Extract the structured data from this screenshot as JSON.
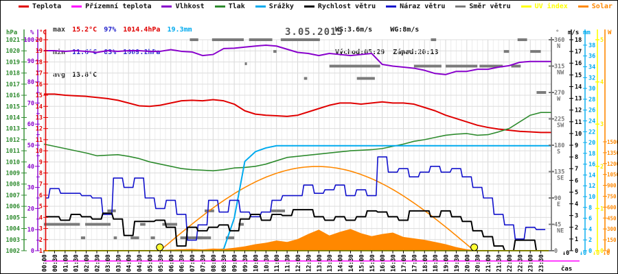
{
  "date": "3.05.2013",
  "legend": {
    "items": [
      {
        "label": "Teplota",
        "color": "#e00000",
        "label_color": "#111111"
      },
      {
        "label": "Přízemní teplota",
        "color": "#ff00ff",
        "label_color": "#111111"
      },
      {
        "label": "Vlhkost",
        "color": "#8800cc",
        "label_color": "#111111"
      },
      {
        "label": "Tlak",
        "color": "#2e8b2e",
        "label_color": "#111111"
      },
      {
        "label": "Srážky",
        "color": "#00aaee",
        "label_color": "#111111"
      },
      {
        "label": "Rychlost větru",
        "color": "#000000",
        "label_color": "#111111"
      },
      {
        "label": "Náraz větru",
        "color": "#1111cc",
        "label_color": "#111111"
      },
      {
        "label": "Směr větru",
        "color": "#7a7a7a",
        "label_color": "#111111"
      },
      {
        "label": "UV index",
        "color": "#ffff00",
        "label_color": "#ffff00"
      },
      {
        "label": "Solar",
        "color": "#ff8800",
        "label_color": "#ff8800"
      }
    ]
  },
  "stats": {
    "max_label": "max",
    "max_temp": "15.2°C",
    "max_hum": "97%",
    "max_pres": "1014.4hPa",
    "max_rain": "19.3mm",
    "min_label": "min",
    "min_temp": "11.6°C",
    "min_hum": "83%",
    "min_pres": "1009.2hPa",
    "avg_label": "avg",
    "avg_temp": "13.8°C",
    "ws": "WS:3.6m/s",
    "wg": "WG:8m/s",
    "sunrise": "Východ:05:29",
    "sunset": "Západ:20:13"
  },
  "axes": {
    "left_headers": [
      {
        "text": "hPa",
        "color": "#2e8b2e"
      },
      {
        "text": "%",
        "color": "#8800cc"
      },
      {
        "text": "°C",
        "color": "#e00000"
      }
    ],
    "right_headers": [
      {
        "text": "°",
        "color": "#666666"
      },
      {
        "text": "m/s",
        "color": "#000000"
      },
      {
        "text": "mm",
        "color": "#00aaee"
      },
      {
        "text": "W",
        "color": "#ff8800"
      }
    ],
    "time_label": "čas",
    "zero_markers": [
      "↓0",
      "↓0",
      "↓0",
      "↓0"
    ],
    "pressure_range": [
      1002,
      1021
    ],
    "temp_range": [
      1,
      20
    ],
    "humidity_range": [
      0,
      100
    ],
    "wind_range": [
      0,
      18
    ],
    "rain_range": [
      0,
      38
    ],
    "uv_range": [
      0,
      5
    ],
    "solar_range": [
      0,
      1500
    ],
    "compass": [
      [
        "360",
        "N"
      ],
      [
        "315",
        "NW"
      ],
      [
        "270",
        "W"
      ],
      [
        "225",
        "SW"
      ],
      [
        "180",
        "S"
      ],
      [
        "135",
        "SE"
      ],
      [
        "90",
        "E"
      ],
      [
        "45",
        "NE"
      ],
      [
        "0",
        ""
      ]
    ]
  },
  "chart_data": {
    "type": "line",
    "title": "3.05.2013",
    "xlabel": "čas",
    "time_labels": [
      "00:00",
      "00:30",
      "01:00",
      "01:30",
      "02:00",
      "02:30",
      "03:00",
      "03:30",
      "04:00",
      "04:30",
      "05:00",
      "05:30",
      "06:00",
      "06:30",
      "07:00",
      "07:30",
      "08:00",
      "08:30",
      "09:00",
      "09:30",
      "10:00",
      "10:30",
      "11:00",
      "11:30",
      "12:00",
      "12:30",
      "13:00",
      "13:30",
      "14:00",
      "14:30",
      "15:00",
      "15:30",
      "16:00",
      "16:30",
      "17:00",
      "17:30",
      "18:00",
      "18:30",
      "19:00",
      "19:30",
      "20:00",
      "20:30",
      "21:00",
      "21:30",
      "22:00",
      "22:30",
      "23:00",
      "23:30"
    ],
    "series": [
      {
        "name": "Teplota",
        "unit": "°C",
        "axis": "temp",
        "color": "#e00000",
        "width": 2,
        "render": "line",
        "values": [
          15.1,
          15.1,
          15.0,
          14.95,
          14.9,
          14.8,
          14.7,
          14.55,
          14.3,
          14.05,
          14.0,
          14.1,
          14.3,
          14.5,
          14.55,
          14.5,
          14.6,
          14.5,
          14.2,
          13.6,
          13.3,
          13.2,
          13.15,
          13.1,
          13.2,
          13.5,
          13.8,
          14.1,
          14.3,
          14.3,
          14.2,
          14.3,
          14.4,
          14.3,
          14.3,
          14.2,
          13.9,
          13.6,
          13.2,
          12.9,
          12.6,
          12.3,
          12.1,
          11.95,
          11.85,
          11.75,
          11.7,
          11.65
        ]
      },
      {
        "name": "Vlhkost",
        "unit": "%",
        "axis": "hum",
        "color": "#8800cc",
        "width": 2,
        "render": "line",
        "values": [
          94.8,
          94.8,
          94.5,
          94.8,
          94.5,
          94.0,
          94.8,
          94.5,
          94.8,
          94.8,
          94.5,
          94.5,
          95.3,
          94.5,
          94.2,
          92.5,
          93.0,
          95.8,
          96.0,
          96.5,
          97.0,
          97.4,
          97.0,
          95.5,
          94.0,
          93.5,
          92.5,
          93.5,
          93.0,
          92.5,
          93.0,
          93.5,
          88.3,
          87.5,
          87.0,
          86.5,
          85.5,
          84.0,
          83.5,
          85.0,
          85.0,
          86.0,
          86.0,
          87.0,
          87.7,
          89.3,
          89.7,
          89.7
        ]
      },
      {
        "name": "Tlak",
        "unit": "hPa",
        "axis": "pres",
        "color": "#2e8b2e",
        "width": 1.6,
        "render": "line",
        "values": [
          1011.6,
          1011.4,
          1011.2,
          1011.0,
          1010.8,
          1010.55,
          1010.6,
          1010.65,
          1010.5,
          1010.3,
          1010.0,
          1009.8,
          1009.6,
          1009.4,
          1009.3,
          1009.25,
          1009.2,
          1009.3,
          1009.45,
          1009.5,
          1009.6,
          1009.8,
          1010.1,
          1010.4,
          1010.5,
          1010.6,
          1010.7,
          1010.8,
          1010.9,
          1011.0,
          1011.05,
          1011.1,
          1011.2,
          1011.4,
          1011.6,
          1011.85,
          1012.0,
          1012.2,
          1012.4,
          1012.5,
          1012.55,
          1012.4,
          1012.45,
          1012.7,
          1013.0,
          1013.6,
          1014.2,
          1014.45
        ]
      },
      {
        "name": "Srážky",
        "unit": "mm",
        "axis": "mm",
        "color": "#00aaee",
        "width": 2,
        "render": "line",
        "values": [
          0,
          0,
          0,
          0,
          0,
          0,
          0,
          0,
          0,
          0,
          0,
          0,
          0,
          0,
          0,
          0.1,
          0.1,
          0.3,
          6.0,
          16.5,
          18.3,
          19.0,
          19.4,
          19.4,
          19.4,
          19.4,
          19.4,
          19.4,
          19.4,
          19.4,
          19.4,
          19.4,
          19.4,
          19.4,
          19.4,
          19.4,
          19.4,
          19.4,
          19.4,
          19.4,
          19.4,
          19.4,
          19.4,
          19.4,
          19.4,
          19.4,
          19.4,
          19.4
        ]
      },
      {
        "name": "Náraz větru",
        "unit": "m/s",
        "axis": "ms",
        "color": "#1111cc",
        "width": 1.6,
        "render": "step",
        "values": [
          4.5,
          5.3,
          4.9,
          4.9,
          4.7,
          4.5,
          3.1,
          6.2,
          5.4,
          6.2,
          4.5,
          3.6,
          4.3,
          3.1,
          0.9,
          2.2,
          4.3,
          3.3,
          4.3,
          3.3,
          2.9,
          3.3,
          4.3,
          4.7,
          4.7,
          5.6,
          4.9,
          5.2,
          5.6,
          4.7,
          5.2,
          4.7,
          8.0,
          6.7,
          7.0,
          6.3,
          6.7,
          7.2,
          6.7,
          7.0,
          6.3,
          5.4,
          4.5,
          3.1,
          2.2,
          1.0,
          2.0,
          1.8
        ]
      },
      {
        "name": "Rychlost větru",
        "unit": "m/s",
        "axis": "ms",
        "color": "#000000",
        "width": 2,
        "render": "step",
        "values": [
          2.9,
          2.9,
          2.6,
          3.1,
          2.9,
          2.7,
          3.2,
          2.7,
          1.3,
          2.5,
          2.5,
          2.6,
          2.0,
          0.4,
          2.0,
          1.7,
          2.0,
          2.2,
          1.7,
          2.7,
          3.1,
          2.6,
          3.1,
          3.0,
          3.5,
          3.5,
          2.9,
          2.6,
          2.9,
          2.6,
          2.9,
          3.4,
          3.3,
          2.9,
          2.6,
          3.4,
          3.4,
          2.9,
          3.4,
          2.9,
          2.5,
          1.7,
          1.2,
          0.4,
          0.0,
          0.9,
          0.9,
          0.0
        ]
      },
      {
        "name": "Solar",
        "unit": "W",
        "axis": "w",
        "color": "#ff8800",
        "width": 1,
        "render": "area",
        "values": [
          0,
          0,
          0,
          0,
          0,
          0,
          0,
          0,
          0,
          0,
          0,
          8,
          15,
          20,
          25,
          18,
          30,
          25,
          40,
          60,
          90,
          110,
          140,
          120,
          160,
          230,
          290,
          210,
          260,
          300,
          240,
          200,
          230,
          250,
          190,
          170,
          150,
          120,
          90,
          50,
          20,
          5,
          0,
          0,
          0,
          0,
          0,
          0
        ]
      },
      {
        "name": "UV index",
        "unit": "",
        "axis": "uv",
        "color": "#ffff00",
        "width": 2,
        "render": "line",
        "values": [
          0,
          0,
          0,
          0,
          0,
          0,
          0,
          0,
          0,
          0,
          0,
          0,
          0,
          0,
          0,
          0,
          0,
          0,
          0,
          0,
          0,
          0,
          0,
          0,
          0,
          0,
          0,
          0,
          0,
          0,
          0,
          0,
          0,
          0,
          0,
          0,
          0,
          0,
          0,
          0,
          0,
          0,
          0,
          0,
          0,
          0,
          0,
          0
        ]
      }
    ],
    "clear_sky": {
      "name": "Solar (clear sky)",
      "color": "#ff8800",
      "sunrise_h": 5.48,
      "sunset_h": 20.35,
      "peak_w": 1160
    },
    "ground_temp_offscale": {
      "name": "Přízemní teplota",
      "color": "#ff00ff"
    },
    "sun_markers": {
      "color": "#ffff33",
      "sunrise_h": 5.48,
      "sunset_h": 20.35
    },
    "wind_dir_segments": [
      [
        0.0,
        1.7,
        45
      ],
      [
        1.75,
        1.95,
        22
      ],
      [
        1.95,
        3.15,
        45
      ],
      [
        3.0,
        3.4,
        68
      ],
      [
        3.3,
        3.45,
        22
      ],
      [
        4.1,
        4.5,
        22
      ],
      [
        4.55,
        4.8,
        45
      ],
      [
        5.05,
        5.25,
        22
      ],
      [
        5.6,
        6.3,
        45
      ],
      [
        6.45,
        7.5,
        22
      ],
      [
        6.9,
        7.3,
        360
      ],
      [
        7.25,
        7.9,
        22
      ],
      [
        7.6,
        8.05,
        68
      ],
      [
        7.95,
        9.45,
        360
      ],
      [
        8.6,
        9.0,
        22
      ],
      [
        9.2,
        9.45,
        45
      ],
      [
        9.5,
        9.6,
        319
      ],
      [
        9.7,
        10.8,
        360
      ],
      [
        10.85,
        11.0,
        340
      ],
      [
        10.75,
        11.4,
        68
      ],
      [
        11.2,
        13.05,
        360
      ],
      [
        12.3,
        12.45,
        294
      ],
      [
        13.5,
        15.9,
        315
      ],
      [
        14.8,
        15.65,
        294
      ],
      [
        16.9,
        17.05,
        340
      ],
      [
        17.15,
        17.35,
        340
      ],
      [
        17.5,
        18.8,
        315
      ],
      [
        18.3,
        18.55,
        360
      ],
      [
        19.0,
        20.5,
        315
      ],
      [
        20.6,
        21.7,
        315
      ],
      [
        21.75,
        22.0,
        340
      ],
      [
        22.1,
        22.55,
        315
      ],
      [
        22.4,
        22.85,
        360
      ],
      [
        23.0,
        23.5,
        340
      ],
      [
        23.3,
        23.75,
        270
      ]
    ]
  }
}
